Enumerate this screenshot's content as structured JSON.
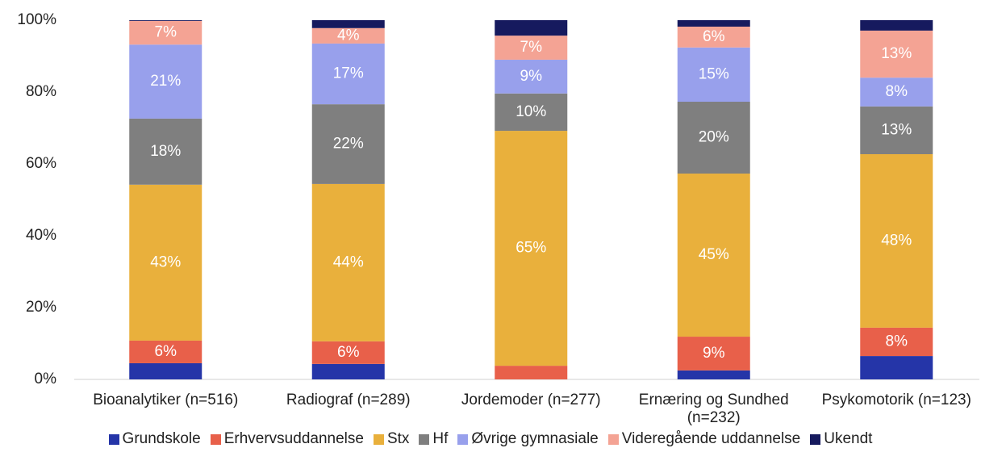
{
  "chart_data": {
    "type": "stacked_bar",
    "categories": [
      "Bioanalytiker (n=516)",
      "Radiograf (n=289)",
      "Jordemoder (n=277)",
      "Ernæring og Sundhed (n=232)",
      "Psykomotorik (n=123)"
    ],
    "series": [
      {
        "name": "Grundskole",
        "color": "#2535a8",
        "values": [
          4.5,
          4.3,
          0,
          2.5,
          6.5
        ],
        "value_labels": [
          null,
          null,
          null,
          null,
          null
        ]
      },
      {
        "name": "Erhvervsuddannelse",
        "color": "#e8604a",
        "values": [
          6.3,
          6.3,
          3.8,
          9.4,
          7.9
        ],
        "value_labels": [
          "6%",
          "6%",
          null,
          "9%",
          "8%"
        ]
      },
      {
        "name": "Stx",
        "color": "#e9b03c",
        "values": [
          43.4,
          43.8,
          65.4,
          45.4,
          48.3
        ],
        "value_labels": [
          "43%",
          "44%",
          "65%",
          "45%",
          "48%"
        ]
      },
      {
        "name": "Hf",
        "color": "#7f7f7f",
        "values": [
          18.4,
          22.2,
          10.4,
          20.0,
          13.3
        ],
        "value_labels": [
          "18%",
          "22%",
          "10%",
          "20%",
          "13%"
        ]
      },
      {
        "name": "Øvrige gymnasiale",
        "color": "#98a0ec",
        "values": [
          20.6,
          16.9,
          9.4,
          15.1,
          8.0
        ],
        "value_labels": [
          "21%",
          "17%",
          "9%",
          "15%",
          "8%"
        ]
      },
      {
        "name": "Videregående uddannelse",
        "color": "#f4a394",
        "values": [
          6.6,
          4.3,
          6.7,
          5.8,
          13.1
        ],
        "value_labels": [
          "7%",
          "4%",
          "7%",
          "6%",
          "13%"
        ]
      },
      {
        "name": "Ukendt",
        "color": "#161a5e",
        "values": [
          0.2,
          2.2,
          4.3,
          1.8,
          2.9
        ],
        "value_labels": [
          null,
          null,
          null,
          null,
          null
        ]
      }
    ],
    "ylim": [
      0,
      100
    ],
    "yticks": [
      {
        "value": 0,
        "label": "0%"
      },
      {
        "value": 20,
        "label": "20%"
      },
      {
        "value": 40,
        "label": "40%"
      },
      {
        "value": 60,
        "label": "60%"
      },
      {
        "value": 80,
        "label": "80%"
      },
      {
        "value": 100,
        "label": "100%"
      }
    ],
    "legend": "bottom"
  }
}
